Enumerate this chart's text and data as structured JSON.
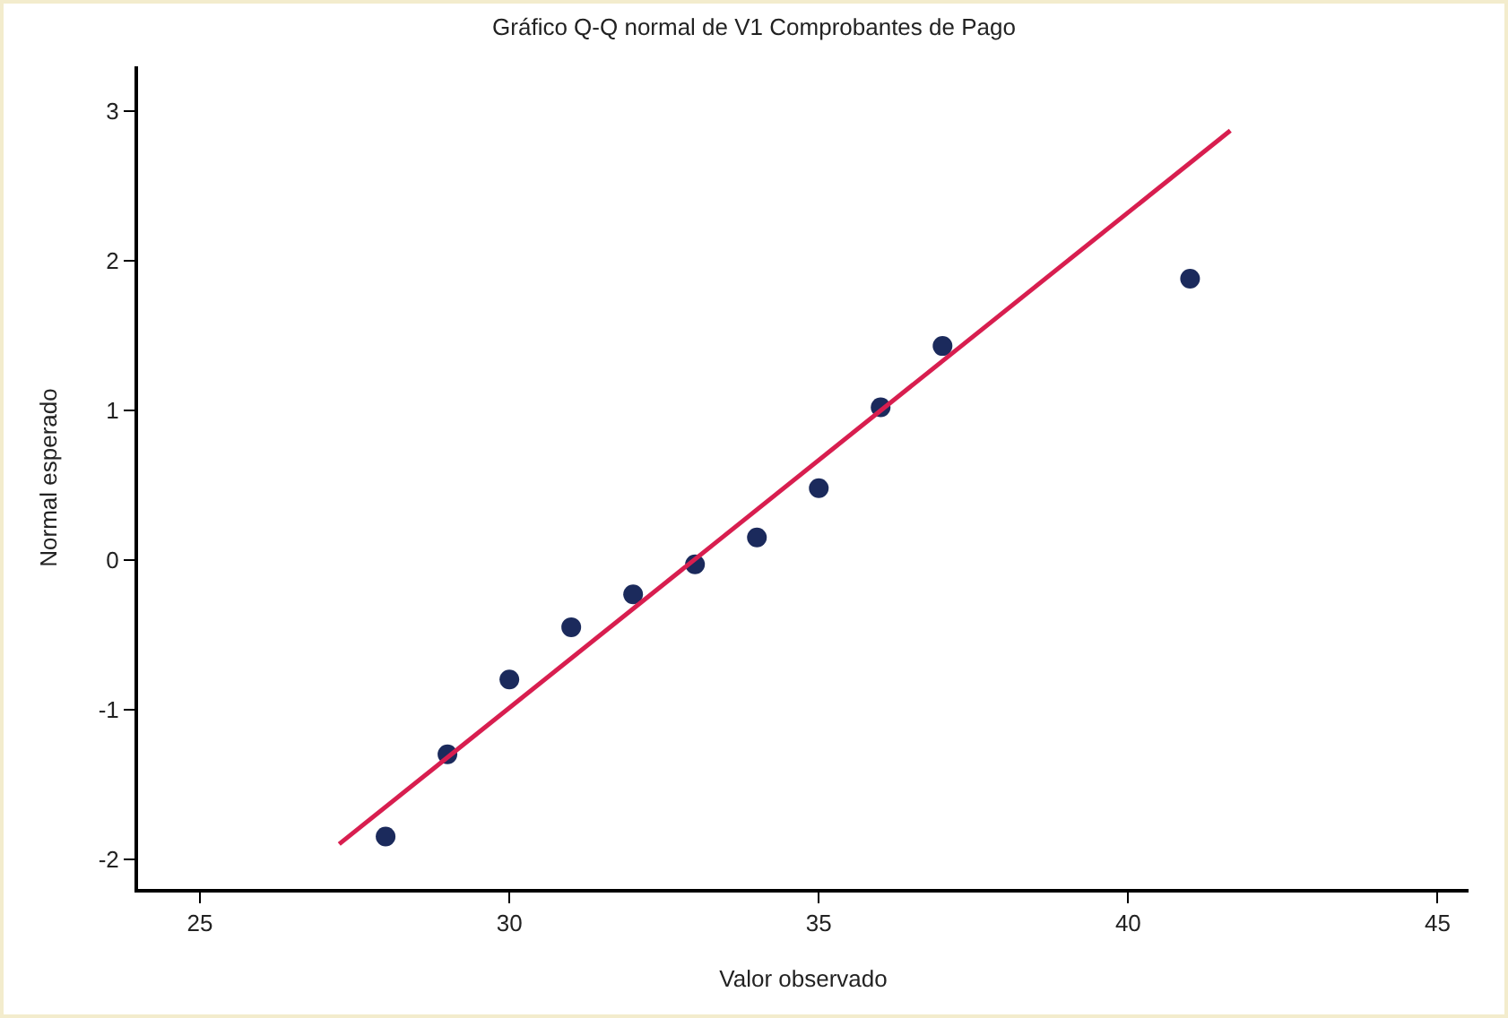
{
  "chart_data": {
    "type": "scatter",
    "title": "Gráfico Q-Q normal de V1 Comprobantes de Pago",
    "xlabel": "Valor observado",
    "ylabel": "Normal esperado",
    "marker": "circle",
    "x": [
      28,
      29,
      30,
      31,
      32,
      33,
      34,
      35,
      36,
      37,
      41
    ],
    "series": [
      {
        "color": "#1b2a5c",
        "values": [
          -1.85,
          -1.3,
          -0.8,
          -0.45,
          -0.23,
          -0.03,
          0.15,
          0.48,
          1.02,
          1.43,
          1.88
        ]
      },
      {
        "type": "line",
        "color": "#d81e4f",
        "x": [
          27.25,
          41.65
        ],
        "values": [
          -1.9,
          2.87
        ],
        "line_style": "solid",
        "marker": "none"
      }
    ],
    "xlim": [
      24,
      45.5
    ],
    "xticks": [
      25,
      30,
      35,
      40,
      45
    ],
    "ylim": [
      -2.2,
      3.3
    ],
    "yticks": [
      -2,
      -1,
      0,
      1,
      2,
      3
    ]
  }
}
